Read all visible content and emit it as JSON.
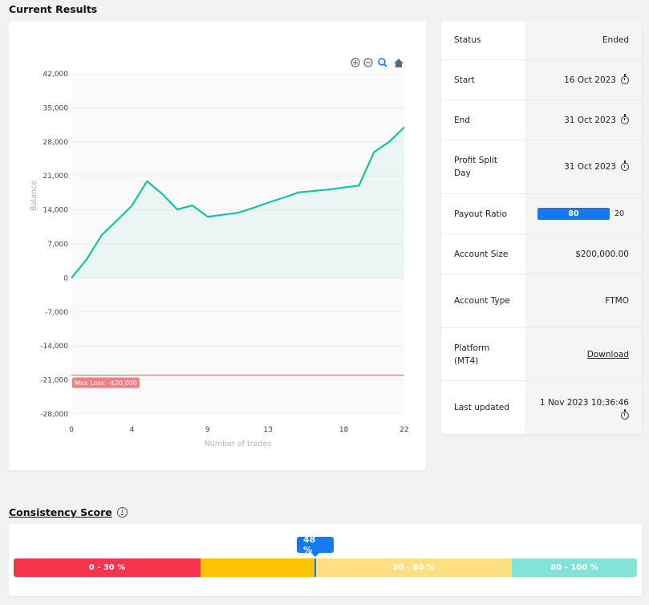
{
  "current_results": {
    "title": "Current Results"
  },
  "toolbar_icons": [
    "zoom-in-icon",
    "zoom-out-icon",
    "zoom-selection-icon",
    "home-icon"
  ],
  "chart_data": {
    "type": "line",
    "xlabel": "Number of trades",
    "ylabel": "Balance",
    "xlim": [
      0,
      22
    ],
    "ylim": [
      -28000,
      42000
    ],
    "x_ticks": [
      0,
      4,
      9,
      13,
      18,
      22
    ],
    "x_tick_labels": [
      "0",
      "4",
      "9",
      "13",
      "18",
      "22"
    ],
    "y_ticks": [
      42000,
      35000,
      28000,
      21000,
      14000,
      7000,
      0,
      -7000,
      -14000,
      -21000,
      -28000
    ],
    "y_tick_labels": [
      "42,000",
      "35,000",
      "28,000",
      "21,000",
      "14,000",
      "7,000",
      "0",
      "-7,000",
      "-14,000",
      "-21,000",
      "-28,000"
    ],
    "series": [
      {
        "color": "#16c2a3",
        "x": [
          0,
          1,
          2,
          3,
          4,
          5,
          6,
          7,
          8,
          9,
          10,
          11,
          12,
          13,
          14,
          15,
          16,
          17,
          18,
          19,
          20,
          21,
          22
        ],
        "values": [
          0,
          3800,
          8800,
          11800,
          14900,
          19900,
          17300,
          14100,
          14900,
          12600,
          13000,
          13400,
          14400,
          15500,
          16500,
          17600,
          17900,
          18200,
          18600,
          19000,
          25900,
          28000,
          31000
        ]
      }
    ],
    "reference_line": {
      "value": -20000,
      "label": "Max Loss: -$20,000",
      "color": "#f07f85"
    },
    "grid": true
  },
  "info_table": {
    "rows": [
      {
        "label": "Status",
        "value": "Ended"
      },
      {
        "label": "Start",
        "value": "16 Oct 2023",
        "icon": "timer-icon"
      },
      {
        "label": "End",
        "value": "31 Oct 2023",
        "icon": "timer-icon"
      },
      {
        "label": "Profit Split Day",
        "value": "31 Oct 2023",
        "icon": "timer-icon"
      },
      {
        "label": "Payout Ratio",
        "value": "80",
        "value2": "20"
      },
      {
        "label": "Account Size",
        "value": "$200,000.00"
      },
      {
        "label": "Account Type",
        "value": "FTMO"
      },
      {
        "label": "Platform (MT4)",
        "value": "Download"
      },
      {
        "label": "Last updated",
        "value": "1 Nov 2023 10:36:46",
        "icon": "timer-icon"
      }
    ]
  },
  "consistency": {
    "title": "Consistency Score",
    "score_label": "48 %",
    "score": 48,
    "segments": [
      {
        "label": "0 - 30 %",
        "color": "#f8334d"
      },
      {
        "label": "",
        "color": "#fdc300"
      },
      {
        "label": "30 - 80 %",
        "color": "#fee082"
      },
      {
        "label": "80 - 100 %",
        "color": "#82e3d6"
      }
    ]
  }
}
